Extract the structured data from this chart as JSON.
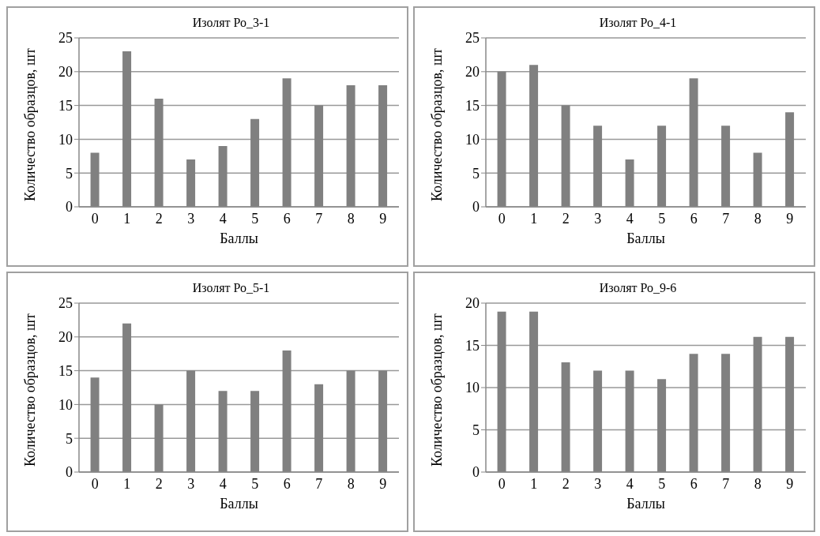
{
  "chart_data": [
    {
      "type": "bar",
      "title": "Изолят Ро_3-1",
      "xlabel": "Баллы",
      "ylabel": "Количество образцов, шт",
      "categories": [
        "0",
        "1",
        "2",
        "3",
        "4",
        "5",
        "6",
        "7",
        "8",
        "9"
      ],
      "values": [
        8,
        23,
        16,
        7,
        9,
        13,
        19,
        15,
        18,
        18
      ],
      "color": "#808080",
      "ylim": [
        0,
        25
      ],
      "yticks": [
        0,
        5,
        10,
        15,
        20,
        25
      ],
      "grid": "y"
    },
    {
      "type": "bar",
      "title": "Изолят Ро_4-1",
      "xlabel": "Баллы",
      "ylabel": "Количество образцов, шт",
      "categories": [
        "0",
        "1",
        "2",
        "3",
        "4",
        "5",
        "6",
        "7",
        "8",
        "9"
      ],
      "values": [
        20,
        21,
        15,
        12,
        7,
        12,
        19,
        12,
        8,
        14
      ],
      "color": "#808080",
      "ylim": [
        0,
        25
      ],
      "yticks": [
        0,
        5,
        10,
        15,
        20,
        25
      ],
      "grid": "y"
    },
    {
      "type": "bar",
      "title": "Изолят Ро_5-1",
      "xlabel": "Баллы",
      "ylabel": "Количество образцов, шт",
      "categories": [
        "0",
        "1",
        "2",
        "3",
        "4",
        "5",
        "6",
        "7",
        "8",
        "9"
      ],
      "values": [
        14,
        22,
        10,
        15,
        12,
        12,
        18,
        13,
        15,
        15
      ],
      "color": "#808080",
      "ylim": [
        0,
        25
      ],
      "yticks": [
        0,
        5,
        10,
        15,
        20,
        25
      ],
      "grid": "y"
    },
    {
      "type": "bar",
      "title": "Изолят Ро_9-6",
      "xlabel": "Баллы",
      "ylabel": "Количество образцов, шт",
      "categories": [
        "0",
        "1",
        "2",
        "3",
        "4",
        "5",
        "6",
        "7",
        "8",
        "9"
      ],
      "values": [
        19,
        19,
        13,
        12,
        12,
        11,
        14,
        14,
        16,
        16
      ],
      "color": "#808080",
      "ylim": [
        0,
        20
      ],
      "yticks": [
        0,
        5,
        10,
        15,
        20
      ],
      "grid": "y"
    }
  ]
}
